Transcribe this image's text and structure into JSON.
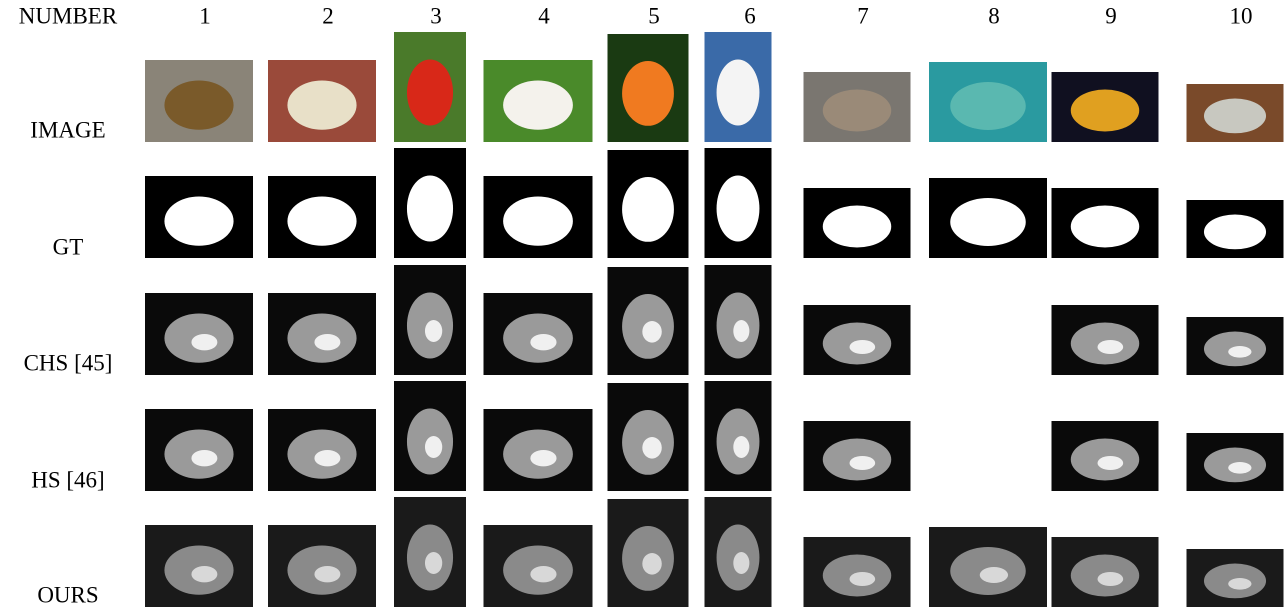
{
  "header": {
    "label": "NUMBER",
    "columns": [
      "1",
      "2",
      "3",
      "4",
      "5",
      "6",
      "7",
      "8",
      "9",
      "10"
    ]
  },
  "rows": [
    {
      "label": "IMAGE"
    },
    {
      "label": "GT"
    },
    {
      "label": "CHS [45]"
    },
    {
      "label": "HS [46]"
    },
    {
      "label": "OURS"
    }
  ]
}
